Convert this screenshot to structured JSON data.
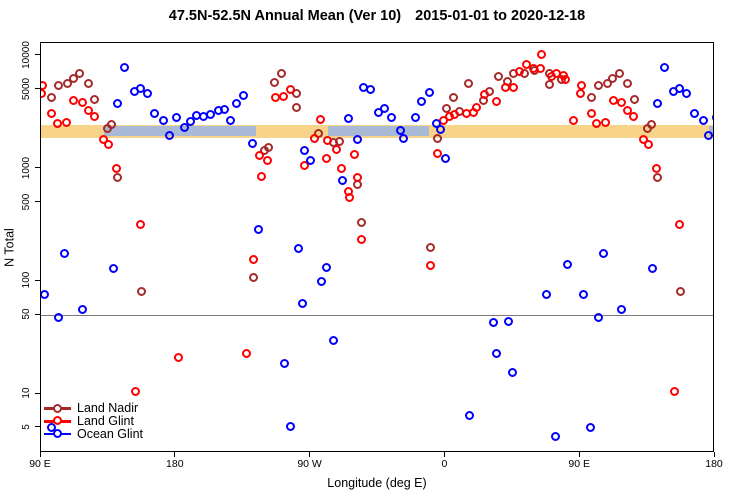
{
  "chart": {
    "title": "47.5N-52.5N Annual Mean (Ver 10)",
    "title_dates": "2015-01-01 to 2020-12-18",
    "xlabel": "Longitude (deg E)",
    "ylabel": "N Total"
  },
  "legend": {
    "items": [
      {
        "label": "Land Nadir",
        "color": "#A52A2A"
      },
      {
        "label": "Land Glint",
        "color": "#FF0000"
      },
      {
        "label": "Ocean Glint",
        "color": "#0000FF"
      }
    ]
  },
  "chart_data": {
    "type": "scatter",
    "title": "47.5N-52.5N Annual Mean (Ver 10)  2015-01-01 to 2020-12-18",
    "xlabel": "Longitude (deg E)",
    "ylabel": "N Total",
    "x_axis": {
      "note": "wrapped longitude axis, degrees east continuing from 90E; 270=90W, 360=0, 450=90E, 540=180",
      "xlim": [
        90,
        540
      ],
      "ticks": [
        {
          "a": 90,
          "label": "90 E"
        },
        {
          "a": 180,
          "label": "180"
        },
        {
          "a": 270,
          "label": "90 W"
        },
        {
          "a": 360,
          "label": "0"
        },
        {
          "a": 450,
          "label": "90 E"
        },
        {
          "a": 540,
          "label": "180"
        }
      ],
      "wrap_duplicate_below_deg": 181
    },
    "y_axis": {
      "scale": "log",
      "ylim": [
        3,
        13000
      ],
      "ticks": [
        5,
        10,
        50,
        100,
        500,
        1000,
        5000,
        10000
      ]
    },
    "reference_line": {
      "value": 50,
      "color": "#7a7a7a"
    },
    "surface_mean_bands": {
      "land": {
        "color": "#F7D489",
        "v_top": 2440,
        "v_bottom": 1870,
        "segments": [
          [
            90,
            540
          ]
        ]
      },
      "ocean": {
        "color": "#A9BAD6",
        "v_top": 2370,
        "v_bottom": 1930,
        "segments": [
          [
            132,
            233.5
          ],
          [
            281.6,
            349
          ],
          [
            536,
            540
          ]
        ]
      }
    },
    "series": [
      {
        "name": "Land Nadir",
        "color": "#A52A2A",
        "points": [
          [
            97.3,
            4240
          ],
          [
            102,
            5420
          ],
          [
            108,
            5650
          ],
          [
            111.4,
            6250
          ],
          [
            116,
            6920
          ],
          [
            121.4,
            5650
          ],
          [
            126,
            4070
          ],
          [
            134.7,
            2250
          ],
          [
            137.4,
            2440
          ],
          [
            141.4,
            826
          ],
          [
            156.8,
            82
          ],
          [
            232.2,
            109
          ],
          [
            238.9,
            1440
          ],
          [
            241.6,
            1530
          ],
          [
            245.6,
            5770
          ],
          [
            250.9,
            6920
          ],
          [
            260.9,
            4600
          ],
          [
            260.9,
            3460
          ],
          [
            275.6,
            2030
          ],
          [
            285.6,
            1690
          ],
          [
            289.6,
            1730
          ],
          [
            301,
            720
          ],
          [
            304.3,
            330
          ],
          [
            349.8,
            198
          ],
          [
            355,
            1840
          ],
          [
            361,
            3390
          ],
          [
            365.7,
            4240
          ],
          [
            369.7,
            3180
          ],
          [
            375.7,
            5650
          ],
          [
            385.7,
            3990
          ],
          [
            389.7,
            4790
          ],
          [
            395.7,
            6520
          ],
          [
            401.7,
            5870
          ],
          [
            405.7,
            6920
          ],
          [
            413.1,
            6920
          ],
          [
            419.7,
            7360
          ],
          [
            429.7,
            6920
          ],
          [
            429.7,
            5530
          ],
          [
            437.7,
            6120
          ]
        ]
      },
      {
        "name": "Land Glint",
        "color": "#FF0000",
        "points": [
          [
            90,
            4600
          ],
          [
            90.7,
            5420
          ],
          [
            97.3,
            3060
          ],
          [
            100.7,
            2490
          ],
          [
            106.7,
            2550
          ],
          [
            112,
            3990
          ],
          [
            117.4,
            3830
          ],
          [
            121.4,
            3250
          ],
          [
            125.4,
            2880
          ],
          [
            132,
            1800
          ],
          [
            135.4,
            1620
          ],
          [
            140.7,
            1010
          ],
          [
            152.8,
            10.6
          ],
          [
            156.1,
            316
          ],
          [
            181.5,
            21
          ],
          [
            227.5,
            23
          ],
          [
            232.2,
            155
          ],
          [
            236.2,
            1300
          ],
          [
            236.9,
            843
          ],
          [
            240.9,
            1190
          ],
          [
            246.3,
            4240
          ],
          [
            251.6,
            4330
          ],
          [
            256.9,
            4990
          ],
          [
            265.6,
            1060
          ],
          [
            272.3,
            1840
          ],
          [
            276.3,
            2700
          ],
          [
            280.9,
            1220
          ],
          [
            281.6,
            1760
          ],
          [
            287,
            1470
          ],
          [
            290.9,
            1010
          ],
          [
            295,
            630
          ],
          [
            296.3,
            550
          ],
          [
            299.6,
            1320
          ],
          [
            301,
            840
          ],
          [
            304.3,
            233
          ],
          [
            349.8,
            137
          ],
          [
            355,
            1350
          ],
          [
            359,
            2650
          ],
          [
            363,
            2880
          ],
          [
            366.3,
            3000
          ],
          [
            374.4,
            3060
          ],
          [
            379,
            3120
          ],
          [
            381,
            3460
          ],
          [
            386.4,
            4510
          ],
          [
            394.4,
            3910
          ],
          [
            400.4,
            5200
          ],
          [
            405.7,
            5200
          ],
          [
            409.7,
            7210
          ],
          [
            414.4,
            8320
          ],
          [
            419.1,
            7670
          ],
          [
            423.7,
            7670
          ],
          [
            424.4,
            10200
          ],
          [
            431.1,
            6520
          ],
          [
            434.4,
            6920
          ],
          [
            439.1,
            6650
          ],
          [
            440.4,
            6120
          ],
          [
            445.8,
            2680
          ]
        ]
      },
      {
        "name": "Ocean Glint",
        "color": "#0000FF",
        "points": [
          [
            92,
            77
          ],
          [
            97,
            5
          ],
          [
            102,
            48
          ],
          [
            105.4,
            175
          ],
          [
            117.4,
            56
          ],
          [
            138.1,
            129
          ],
          [
            141.4,
            3750
          ],
          [
            146,
            7830
          ],
          [
            152.1,
            4790
          ],
          [
            156.1,
            5090
          ],
          [
            160.8,
            4600
          ],
          [
            166.1,
            3060
          ],
          [
            172.1,
            2650
          ],
          [
            175.5,
            1950
          ],
          [
            180.8,
            2820
          ],
          [
            185.5,
            2300
          ],
          [
            189.5,
            2600
          ],
          [
            194.1,
            2930
          ],
          [
            198.8,
            2900
          ],
          [
            203.5,
            3000
          ],
          [
            208.2,
            3250
          ],
          [
            212.2,
            3320
          ],
          [
            216.2,
            2650
          ],
          [
            220.2,
            3750
          ],
          [
            225.5,
            4420
          ],
          [
            231.5,
            1660
          ],
          [
            234.9,
            286
          ],
          [
            252.3,
            18.5
          ],
          [
            256.9,
            5.2
          ],
          [
            261.6,
            194
          ],
          [
            264.9,
            63
          ],
          [
            265.6,
            1440
          ],
          [
            269.6,
            1170
          ],
          [
            277.6,
            99
          ],
          [
            280.3,
            132
          ],
          [
            285,
            30
          ],
          [
            291.6,
            790
          ],
          [
            295.6,
            2760
          ],
          [
            301,
            1800
          ],
          [
            305.6,
            5200
          ],
          [
            310.3,
            4990
          ],
          [
            315.6,
            3120
          ],
          [
            319.6,
            3390
          ],
          [
            324.3,
            2820
          ],
          [
            330.3,
            2160
          ],
          [
            332.3,
            1840
          ],
          [
            340.3,
            2820
          ],
          [
            344.3,
            3910
          ],
          [
            349.7,
            4700
          ],
          [
            354.3,
            2490
          ],
          [
            357,
            2210
          ],
          [
            360.3,
            1220
          ],
          [
            376.4,
            6.5
          ],
          [
            391.8,
            43
          ],
          [
            393.8,
            23
          ],
          [
            401.8,
            44
          ],
          [
            404.5,
            15.4
          ],
          [
            427.2,
            77
          ],
          [
            433.2,
            4.2
          ],
          [
            441.8,
            140
          ]
        ]
      }
    ],
    "legend_position": "bottom-left",
    "grid": false
  }
}
